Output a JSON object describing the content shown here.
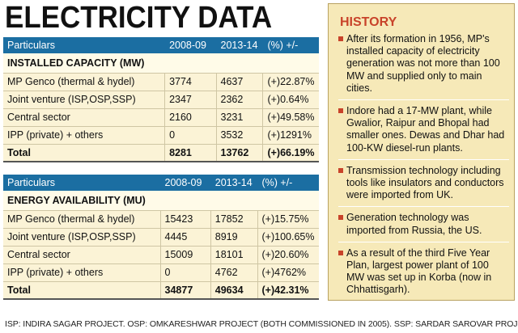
{
  "title": "ELECTRICITY DATA",
  "table1": {
    "headers": [
      "Particulars",
      "2008-09",
      "2013-14",
      "(%) +/-"
    ],
    "section": "INSTALLED CAPACITY (MW)",
    "rows": [
      [
        "MP Genco (thermal & hydel)",
        "3774",
        "4637",
        "(+)22.87%"
      ],
      [
        "Joint venture (ISP,OSP,SSP)",
        "2347",
        "2362",
        "(+)0.64%"
      ],
      [
        "Central sector",
        "2160",
        "3231",
        "(+)49.58%"
      ],
      [
        "IPP (private) + others",
        "0",
        "3532",
        "(+)1291%"
      ]
    ],
    "total": [
      "Total",
      "8281",
      "13762",
      "(+)66.19%"
    ]
  },
  "table2": {
    "headers": [
      "Particulars",
      "2008-09",
      "2013-14",
      "(%) +/-"
    ],
    "section": "ENERGY AVAILABILITY (MU)",
    "rows": [
      [
        "MP Genco (thermal & hydel)",
        "15423",
        "17852",
        "(+)15.75%"
      ],
      [
        "Joint venture (ISP,OSP,SSP)",
        "4445",
        "8919",
        "(+)100.65%"
      ],
      [
        "Central sector",
        "15009",
        "18101",
        "(+)20.60%"
      ],
      [
        "IPP (private) + others",
        "0",
        "4762",
        "(+)4762%"
      ]
    ],
    "total": [
      "Total",
      "34877",
      "49634",
      "(+)42.31%"
    ]
  },
  "history": {
    "title": "HISTORY",
    "items": [
      "After its formation in 1956, MP's installed capacity of electricity generation was not more than 100 MW and supplied only to main cities.",
      "Indore had a 17-MW plant, while Gwalior, Raipur and Bhopal had smaller ones. Dewas and Dhar had 100-KW diesel-run plants.",
      "Transmission technology including tools like insulators and conductors were imported from UK.",
      "Generation technology was imported from Russia, the US.",
      "As a result of the third Five Year Plan, largest power plant of 100 MW was set up in Korba (now in Chhattisgarh)."
    ],
    "bullet_color": "#c8432a"
  },
  "footer": "ISP: INDIRA SAGAR PROJECT. OSP: OMKARESHWAR PROJECT (BOTH COMMISSIONED IN 2005). SSP: SARDAR SAROVAR PROJECT",
  "colors": {
    "header_blue": "#1b6ea2",
    "row_bg": "#fbf3d6",
    "history_bg": "#f6e9b8",
    "accent_red": "#c8432a"
  }
}
